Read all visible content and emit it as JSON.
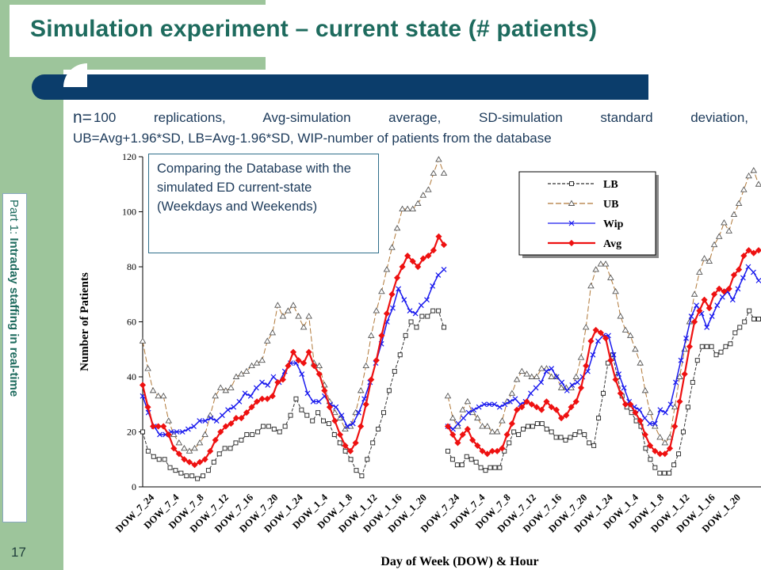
{
  "slide": {
    "title": "Simulation experiment – current state (# patients)",
    "subtitle_n": "n=",
    "subtitle_line1_rest": "100 replications, Avg-simulation average, SD-simulation standard deviation,",
    "subtitle_line2": "UB=Avg+1.96*SD, LB=Avg-1.96*SD, WIP-number of patients from the database",
    "side_label_prefix": "Part 1: ",
    "side_label_bold": "Intraday staffing in real-time",
    "slide_number": "17",
    "annotation": "Comparing the Database with the simulated ED current-state (Weekdays and Weekends)"
  },
  "chart_data": {
    "type": "line",
    "ylabel": "Number of Patients",
    "xlabel": "Day of Week (DOW) & Hour",
    "ylim": [
      0,
      120
    ],
    "yticks": [
      0,
      20,
      40,
      60,
      80,
      100,
      120
    ],
    "xtick_labels": [
      "DOW_7_24",
      "DOW_7_4",
      "DOW_7_8",
      "DOW_7_12",
      "DOW_7_16",
      "DOW_7_20",
      "DOW_1_24",
      "DOW_1_4",
      "DOW_1_8",
      "DOW_1_12",
      "DOW_1_16",
      "DOW_1_20",
      "DOW_7_24",
      "DOW_7_4",
      "DOW_7_8",
      "DOW_7_12",
      "DOW_7_16",
      "DOW_7_20",
      "DOW_1_24",
      "DOW_1_4",
      "DOW_1_8",
      "DOW_1_12",
      "DOW_1_16",
      "DOW_1_20"
    ],
    "legend_position": "top-right",
    "series": [
      {
        "name": "LB",
        "color": "#333333",
        "marker": "square",
        "dash": "4,2",
        "segments": [
          [
            20,
            13,
            11,
            10,
            10,
            7,
            6,
            5,
            4,
            4,
            3,
            4,
            6,
            9,
            12,
            14,
            14,
            16,
            17,
            19,
            19,
            20,
            22,
            22,
            21,
            20,
            22,
            26,
            32,
            28,
            26,
            24,
            27,
            24,
            23,
            19,
            16,
            13,
            10,
            6,
            4,
            10,
            16,
            21,
            27,
            35,
            42,
            48,
            55,
            60,
            58,
            62,
            62,
            64,
            64,
            58
          ],
          [
            13,
            10,
            8,
            8,
            11,
            10,
            9,
            7,
            6,
            7,
            7,
            7,
            13,
            16,
            20,
            19,
            21,
            22,
            22,
            23,
            23,
            21,
            20,
            18,
            18,
            17,
            18,
            19,
            20,
            19,
            16,
            15,
            25,
            34,
            45,
            48,
            40,
            33,
            29,
            27,
            24,
            22,
            14,
            10,
            7,
            5,
            5,
            5,
            8,
            12,
            20,
            29,
            38,
            46,
            51,
            51,
            51,
            48,
            49,
            51,
            52,
            56,
            58,
            60,
            64,
            61,
            61
          ]
        ]
      },
      {
        "name": "UB",
        "color": "#b07838",
        "marker": "triangle",
        "dash": "7,3",
        "segments": [
          [
            53,
            43,
            35,
            33,
            33,
            24,
            19,
            16,
            14,
            13,
            14,
            16,
            19,
            26,
            33,
            36,
            35,
            36,
            40,
            41,
            42,
            44,
            45,
            46,
            53,
            56,
            66,
            62,
            64,
            66,
            62,
            58,
            62,
            45,
            44,
            37,
            31,
            27,
            25,
            21,
            22,
            27,
            35,
            44,
            55,
            64,
            71,
            79,
            87,
            94,
            101,
            101,
            101,
            103,
            106,
            108,
            114,
            119,
            114
          ],
          [
            33,
            25,
            22,
            28,
            31,
            27,
            25,
            22,
            22,
            20,
            20,
            24,
            31,
            34,
            39,
            42,
            41,
            40,
            40,
            43,
            43,
            40,
            40,
            36,
            36,
            36,
            40,
            47,
            58,
            73,
            79,
            81,
            81,
            76,
            71,
            62,
            57,
            55,
            50,
            45,
            35,
            27,
            22,
            18,
            16,
            18,
            29,
            40,
            50,
            60,
            70,
            78,
            83,
            82,
            88,
            91,
            96,
            93,
            99,
            103,
            108,
            113,
            115,
            110
          ]
        ]
      },
      {
        "name": "Wip",
        "color": "#1a1aee",
        "marker": "x",
        "dash": "",
        "segments": [
          [
            33,
            27,
            22,
            19,
            19,
            20,
            20,
            20,
            21,
            22,
            24,
            24,
            25,
            24,
            26,
            28,
            29,
            31,
            34,
            33,
            36,
            38,
            37,
            40,
            38,
            42,
            45,
            45,
            41,
            34,
            31,
            31,
            33,
            30,
            29,
            26,
            22,
            23,
            27,
            32,
            38,
            45,
            52,
            60,
            65,
            72,
            68,
            64,
            63,
            66,
            68,
            73,
            77,
            79
          ],
          [
            22,
            21,
            23,
            25,
            27,
            28,
            29,
            30,
            30,
            30,
            29,
            30,
            31,
            32,
            30,
            31,
            34,
            36,
            38,
            42,
            43,
            40,
            38,
            35,
            37,
            38,
            40,
            42,
            48,
            53,
            55,
            55,
            48,
            41,
            36,
            31,
            29,
            28,
            25,
            23,
            23,
            28,
            27,
            30,
            38,
            46,
            54,
            62,
            66,
            63,
            58,
            62,
            66,
            69,
            71,
            68,
            72,
            76,
            80,
            78,
            75
          ]
        ]
      },
      {
        "name": "Avg",
        "color": "#ee1111",
        "marker": "diamond",
        "dash": "",
        "segments": [
          [
            37,
            29,
            22,
            22,
            22,
            19,
            14,
            12,
            10,
            9,
            8,
            9,
            10,
            13,
            17,
            20,
            22,
            23,
            25,
            25,
            27,
            29,
            31,
            32,
            32,
            33,
            38,
            39,
            44,
            49,
            46,
            45,
            49,
            44,
            41,
            35,
            29,
            24,
            19,
            15,
            13,
            16,
            22,
            30,
            39,
            46,
            55,
            63,
            70,
            76,
            80,
            84,
            82,
            80,
            83,
            84,
            86,
            91,
            88
          ],
          [
            22,
            19,
            16,
            19,
            21,
            17,
            15,
            13,
            12,
            13,
            13,
            14,
            19,
            23,
            28,
            29,
            31,
            30,
            29,
            28,
            31,
            29,
            28,
            25,
            26,
            29,
            31,
            36,
            44,
            53,
            57,
            56,
            54,
            46,
            39,
            34,
            30,
            30,
            27,
            24,
            19,
            15,
            13,
            12,
            12,
            14,
            22,
            31,
            41,
            51,
            60,
            64,
            68,
            65,
            70,
            72,
            71,
            72,
            77,
            79,
            84,
            86,
            85,
            86
          ]
        ]
      }
    ]
  }
}
